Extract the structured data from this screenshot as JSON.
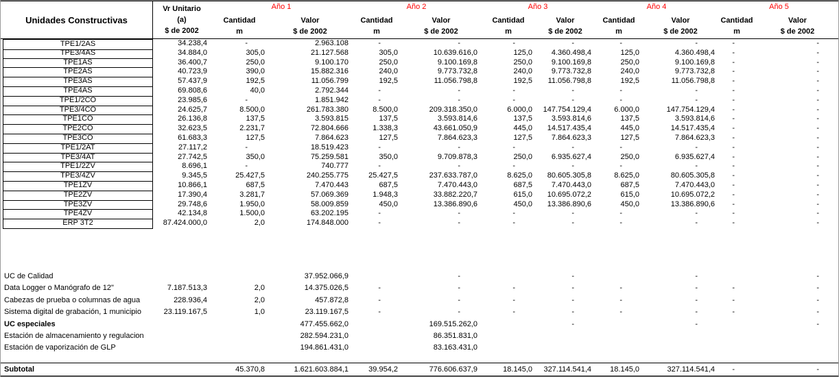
{
  "header": {
    "unit_label": "Unidades Constructivas",
    "vr": [
      "Vr Unitario",
      "(a)",
      "$ de 2002"
    ],
    "years": [
      "Año 1",
      "Año 2",
      "Año 3",
      "Año 4",
      "Año 5"
    ],
    "cantidad": [
      "Cantidad",
      "m"
    ],
    "valor": [
      "Valor",
      "$ de 2002"
    ],
    "year_color": "#FF0000"
  },
  "tpe_rows": [
    {
      "label": "TPE1/2AS",
      "cells": [
        "34.238,4",
        "-",
        "2.963.108",
        "-",
        "-",
        "-",
        "-",
        "-",
        "-",
        "-",
        "-"
      ]
    },
    {
      "label": "TPE3/4AS",
      "cells": [
        "34.884,0",
        "305,0",
        "21.127.568",
        "305,0",
        "10.639.616,0",
        "125,0",
        "4.360.498,4",
        "125,0",
        "4.360.498,4",
        "-",
        "-"
      ]
    },
    {
      "label": "TPE1AS",
      "cells": [
        "36.400,7",
        "250,0",
        "9.100.170",
        "250,0",
        "9.100.169,8",
        "250,0",
        "9.100.169,8",
        "250,0",
        "9.100.169,8",
        "-",
        "-"
      ]
    },
    {
      "label": "TPE2AS",
      "cells": [
        "40.723,9",
        "390,0",
        "15.882.316",
        "240,0",
        "9.773.732,8",
        "240,0",
        "9.773.732,8",
        "240,0",
        "9.773.732,8",
        "-",
        "-"
      ]
    },
    {
      "label": "TPE3AS",
      "cells": [
        "57.437,9",
        "192,5",
        "11.056.799",
        "192,5",
        "11.056.798,8",
        "192,5",
        "11.056.798,8",
        "192,5",
        "11.056.798,8",
        "-",
        "-"
      ]
    },
    {
      "label": "TPE4AS",
      "cells": [
        "69.808,6",
        "40,0",
        "2.792.344",
        "-",
        "-",
        "-",
        "-",
        "-",
        "-",
        "-",
        "-"
      ]
    },
    {
      "label": "TPE1/2CO",
      "cells": [
        "23.985,6",
        "-",
        "1.851.942",
        "-",
        "-",
        "-",
        "-",
        "-",
        "-",
        "-",
        "-"
      ]
    },
    {
      "label": "TPE3/4CO",
      "cells": [
        "24.625,7",
        "8.500,0",
        "261.783.380",
        "8.500,0",
        "209.318.350,0",
        "6.000,0",
        "147.754.129,4",
        "6.000,0",
        "147.754.129,4",
        "-",
        "-"
      ]
    },
    {
      "label": "TPE1CO",
      "cells": [
        "26.136,8",
        "137,5",
        "3.593.815",
        "137,5",
        "3.593.814,6",
        "137,5",
        "3.593.814,6",
        "137,5",
        "3.593.814,6",
        "-",
        "-"
      ]
    },
    {
      "label": "TPE2CO",
      "cells": [
        "32.623,5",
        "2.231,7",
        "72.804.666",
        "1.338,3",
        "43.661.050,9",
        "445,0",
        "14.517.435,4",
        "445,0",
        "14.517.435,4",
        "-",
        "-"
      ]
    },
    {
      "label": "TPE3CO",
      "cells": [
        "61.683,3",
        "127,5",
        "7.864.623",
        "127,5",
        "7.864.623,3",
        "127,5",
        "7.864.623,3",
        "127,5",
        "7.864.623,3",
        "-",
        "-"
      ]
    },
    {
      "label": "TPE1/2AT",
      "cells": [
        "27.117,2",
        "-",
        "18.519.423",
        "-",
        "-",
        "-",
        "-",
        "-",
        "-",
        "-",
        "-"
      ]
    },
    {
      "label": "TPE3/4AT",
      "cells": [
        "27.742,5",
        "350,0",
        "75.259.581",
        "350,0",
        "9.709.878,3",
        "250,0",
        "6.935.627,4",
        "250,0",
        "6.935.627,4",
        "-",
        "-"
      ]
    },
    {
      "label": "TPE1/2ZV",
      "cells": [
        "8.696,1",
        "-",
        "740.777",
        "-",
        "-",
        "-",
        "-",
        "-",
        "-",
        "-",
        "-"
      ]
    },
    {
      "label": "TPE3/4ZV",
      "cells": [
        "9.345,5",
        "25.427,5",
        "240.255.775",
        "25.427,5",
        "237.633.787,0",
        "8.625,0",
        "80.605.305,8",
        "8.625,0",
        "80.605.305,8",
        "-",
        "-"
      ]
    },
    {
      "label": "TPE1ZV",
      "cells": [
        "10.866,1",
        "687,5",
        "7.470.443",
        "687,5",
        "7.470.443,0",
        "687,5",
        "7.470.443,0",
        "687,5",
        "7.470.443,0",
        "-",
        "-"
      ]
    },
    {
      "label": "TPE2ZV",
      "cells": [
        "17.390,4",
        "3.281,7",
        "57.069.369",
        "1.948,3",
        "33.882.220,7",
        "615,0",
        "10.695.072,2",
        "615,0",
        "10.695.072,2",
        "-",
        "-"
      ]
    },
    {
      "label": "TPE3ZV",
      "cells": [
        "29.748,6",
        "1.950,0",
        "58.009.859",
        "450,0",
        "13.386.890,6",
        "450,0",
        "13.386.890,6",
        "450,0",
        "13.386.890,6",
        "-",
        "-"
      ]
    },
    {
      "label": "TPE4ZV",
      "cells": [
        "42.134,8",
        "1.500,0",
        "63.202.195",
        "-",
        "-",
        "-",
        "-",
        "-",
        "-",
        "-",
        "-"
      ]
    },
    {
      "label": "ERP 3T2",
      "cells": [
        "87.424.000,0",
        "2,0",
        "174.848.000",
        "-",
        "-",
        "-",
        "-",
        "-",
        "-",
        "-",
        "-"
      ]
    }
  ],
  "extra_rows": [
    {
      "label": "UC de Calidad",
      "bold": false,
      "cells": [
        "",
        "",
        "37.952.066,9",
        "",
        "-",
        "",
        "-",
        "",
        "-",
        "",
        "-"
      ]
    },
    {
      "label": "Data Logger o Manógrafo de 12\"",
      "bold": false,
      "cells": [
        "7.187.513,3",
        "2,0",
        "14.375.026,5",
        "-",
        "-",
        "-",
        "-",
        "-",
        "-",
        "-",
        "-"
      ]
    },
    {
      "label": "Cabezas de prueba o columnas de agua",
      "bold": false,
      "cells": [
        "228.936,4",
        "2,0",
        "457.872,8",
        "-",
        "-",
        "-",
        "-",
        "-",
        "-",
        "-",
        "-"
      ]
    },
    {
      "label": "Sistema digital de grabación, 1 municipio",
      "bold": false,
      "cells": [
        "23.119.167,5",
        "1,0",
        "23.119.167,5",
        "-",
        "-",
        "-",
        "-",
        "-",
        "-",
        "-",
        "-"
      ]
    },
    {
      "label": "UC especiales",
      "bold": true,
      "cells": [
        "",
        "",
        "477.455.662,0",
        "",
        "169.515.262,0",
        "",
        "-",
        "",
        "-",
        "",
        "-"
      ]
    },
    {
      "label": "Estación de almacenamiento y regulacion",
      "bold": false,
      "cells": [
        "",
        "",
        "282.594.231,0",
        "",
        "86.351.831,0",
        "",
        "",
        "",
        "",
        "",
        ""
      ]
    },
    {
      "label": "Estación de vaporización de GLP",
      "bold": false,
      "cells": [
        "",
        "",
        "194.861.431,0",
        "",
        "83.163.431,0",
        "",
        "",
        "",
        "",
        "",
        ""
      ]
    }
  ],
  "subtotal_rows": [
    {
      "label": "Subtotal",
      "bold": true,
      "cells": [
        "",
        "45.370,8",
        "1.621.603.884,1",
        "39.954,2",
        "776.606.637,9",
        "18.145,0",
        "327.114.541,4",
        "18.145,0",
        "327.114.541,4",
        "-",
        "-"
      ]
    }
  ]
}
